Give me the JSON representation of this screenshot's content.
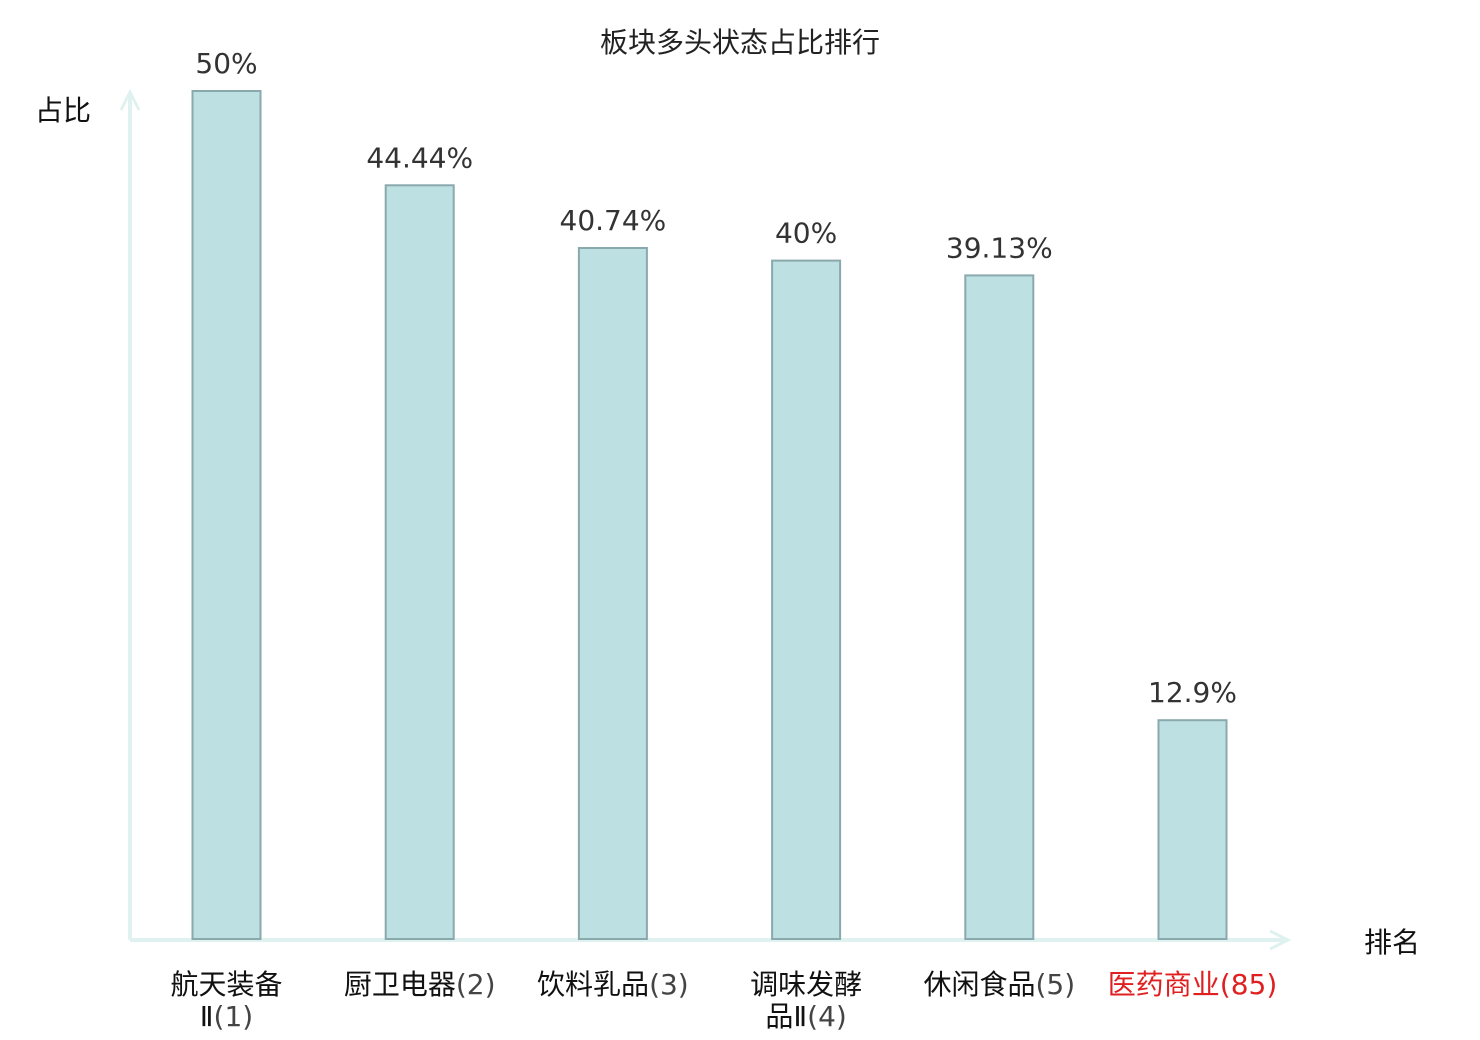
{
  "chart_data": {
    "type": "bar",
    "title": "板块多头状态占比排行",
    "ylabel": "占比",
    "xlabel": "排名",
    "ylim": [
      0,
      50
    ],
    "grid": false,
    "categories": [
      {
        "name_lines": [
          "航天装备",
          "Ⅱ"
        ],
        "rank": "(1)",
        "highlight": false
      },
      {
        "name_lines": [
          "厨卫电器"
        ],
        "rank": "(2)",
        "highlight": false
      },
      {
        "name_lines": [
          "饮料乳品"
        ],
        "rank": "(3)",
        "highlight": false
      },
      {
        "name_lines": [
          "调味发酵",
          "品Ⅱ"
        ],
        "rank": "(4)",
        "highlight": false
      },
      {
        "name_lines": [
          "休闲食品"
        ],
        "rank": "(5)",
        "highlight": false
      },
      {
        "name_lines": [
          "医药商业"
        ],
        "rank": "(85)",
        "highlight": true
      }
    ],
    "values": [
      50,
      44.44,
      40.74,
      40,
      39.13,
      12.9
    ],
    "value_labels": [
      "50%",
      "44.44%",
      "40.74%",
      "40%",
      "39.13%",
      "12.9%"
    ]
  },
  "colors": {
    "bar_fill": "#bde0e3",
    "bar_stroke": "#8aa9ad",
    "axis": "#e0f2ef",
    "text": "#333333",
    "highlight": "#e02020"
  }
}
